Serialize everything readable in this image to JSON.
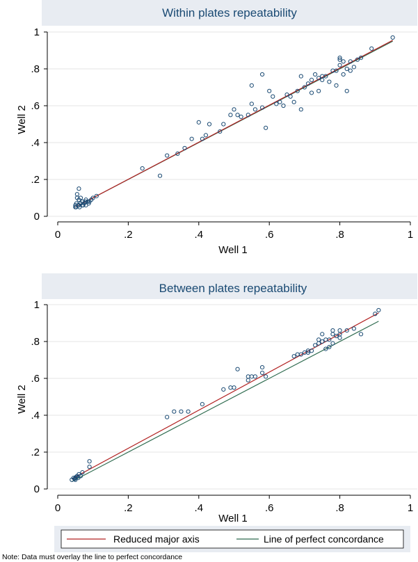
{
  "chart_data": [
    {
      "type": "scatter",
      "title": "Within plates repeatability",
      "xlabel": "Well 1",
      "ylabel": "Well 2",
      "xlim": [
        0,
        1
      ],
      "ylim": [
        0,
        1
      ],
      "x_ticks": [
        0,
        0.2,
        0.4,
        0.6,
        0.8,
        1
      ],
      "y_ticks": [
        0,
        0.2,
        0.4,
        0.6,
        0.8,
        1
      ],
      "x_tick_labels": [
        "0",
        ".2",
        ".4",
        ".6",
        ".8",
        "1"
      ],
      "y_tick_labels": [
        "0",
        ".2",
        ".4",
        ".6",
        ".8",
        "1"
      ],
      "grid": true,
      "points": [
        [
          0.05,
          0.05
        ],
        [
          0.05,
          0.06
        ],
        [
          0.052,
          0.05
        ],
        [
          0.053,
          0.07
        ],
        [
          0.055,
          0.1
        ],
        [
          0.055,
          0.12
        ],
        [
          0.058,
          0.06
        ],
        [
          0.06,
          0.15
        ],
        [
          0.06,
          0.09
        ],
        [
          0.06,
          0.06
        ],
        [
          0.062,
          0.05
        ],
        [
          0.065,
          0.07
        ],
        [
          0.065,
          0.1
        ],
        [
          0.07,
          0.06
        ],
        [
          0.07,
          0.08
        ],
        [
          0.072,
          0.06
        ],
        [
          0.075,
          0.07
        ],
        [
          0.078,
          0.08
        ],
        [
          0.08,
          0.06
        ],
        [
          0.08,
          0.09
        ],
        [
          0.085,
          0.08
        ],
        [
          0.088,
          0.07
        ],
        [
          0.09,
          0.08
        ],
        [
          0.095,
          0.09
        ],
        [
          0.1,
          0.1
        ],
        [
          0.11,
          0.11
        ],
        [
          0.24,
          0.26
        ],
        [
          0.29,
          0.22
        ],
        [
          0.31,
          0.33
        ],
        [
          0.34,
          0.34
        ],
        [
          0.36,
          0.37
        ],
        [
          0.38,
          0.42
        ],
        [
          0.4,
          0.51
        ],
        [
          0.41,
          0.42
        ],
        [
          0.42,
          0.44
        ],
        [
          0.43,
          0.5
        ],
        [
          0.46,
          0.46
        ],
        [
          0.47,
          0.5
        ],
        [
          0.49,
          0.55
        ],
        [
          0.5,
          0.58
        ],
        [
          0.51,
          0.55
        ],
        [
          0.52,
          0.54
        ],
        [
          0.54,
          0.55
        ],
        [
          0.55,
          0.71
        ],
        [
          0.55,
          0.61
        ],
        [
          0.56,
          0.58
        ],
        [
          0.58,
          0.77
        ],
        [
          0.58,
          0.59
        ],
        [
          0.59,
          0.48
        ],
        [
          0.6,
          0.68
        ],
        [
          0.61,
          0.65
        ],
        [
          0.62,
          0.61
        ],
        [
          0.63,
          0.62
        ],
        [
          0.64,
          0.6
        ],
        [
          0.65,
          0.66
        ],
        [
          0.66,
          0.65
        ],
        [
          0.67,
          0.62
        ],
        [
          0.68,
          0.68
        ],
        [
          0.69,
          0.76
        ],
        [
          0.69,
          0.58
        ],
        [
          0.7,
          0.7
        ],
        [
          0.71,
          0.72
        ],
        [
          0.72,
          0.74
        ],
        [
          0.72,
          0.67
        ],
        [
          0.73,
          0.77
        ],
        [
          0.74,
          0.75
        ],
        [
          0.74,
          0.68
        ],
        [
          0.75,
          0.74
        ],
        [
          0.75,
          0.76
        ],
        [
          0.76,
          0.76
        ],
        [
          0.77,
          0.73
        ],
        [
          0.78,
          0.79
        ],
        [
          0.79,
          0.79
        ],
        [
          0.79,
          0.71
        ],
        [
          0.8,
          0.82
        ],
        [
          0.8,
          0.86
        ],
        [
          0.8,
          0.85
        ],
        [
          0.81,
          0.77
        ],
        [
          0.81,
          0.84
        ],
        [
          0.82,
          0.8
        ],
        [
          0.82,
          0.68
        ],
        [
          0.83,
          0.84
        ],
        [
          0.83,
          0.79
        ],
        [
          0.84,
          0.81
        ],
        [
          0.85,
          0.85
        ],
        [
          0.86,
          0.86
        ],
        [
          0.89,
          0.91
        ],
        [
          0.95,
          0.97
        ]
      ],
      "lines": [
        {
          "role": "Reduced major axis",
          "color": "#b22222",
          "x": [
            0.05,
            0.95
          ],
          "y": [
            0.05,
            0.955
          ]
        },
        {
          "role": "Line of perfect concordance",
          "color": "#2e6b4f",
          "x": [
            0.05,
            0.95
          ],
          "y": [
            0.05,
            0.95
          ]
        }
      ]
    },
    {
      "type": "scatter",
      "title": "Between plates repeatability",
      "xlabel": "Well 1",
      "ylabel": "Well 2",
      "xlim": [
        0,
        1
      ],
      "ylim": [
        0,
        1
      ],
      "x_ticks": [
        0,
        0.2,
        0.4,
        0.6,
        0.8,
        1
      ],
      "y_ticks": [
        0,
        0.2,
        0.4,
        0.6,
        0.8,
        1
      ],
      "x_tick_labels": [
        "0",
        ".2",
        ".4",
        ".6",
        ".8",
        "1"
      ],
      "y_tick_labels": [
        "0",
        ".2",
        ".4",
        ".6",
        ".8",
        "1"
      ],
      "grid": true,
      "points": [
        [
          0.04,
          0.05
        ],
        [
          0.045,
          0.06
        ],
        [
          0.048,
          0.055
        ],
        [
          0.05,
          0.06
        ],
        [
          0.05,
          0.05
        ],
        [
          0.052,
          0.065
        ],
        [
          0.055,
          0.07
        ],
        [
          0.058,
          0.06
        ],
        [
          0.06,
          0.08
        ],
        [
          0.065,
          0.07
        ],
        [
          0.07,
          0.09
        ],
        [
          0.09,
          0.15
        ],
        [
          0.09,
          0.12
        ],
        [
          0.31,
          0.39
        ],
        [
          0.33,
          0.42
        ],
        [
          0.35,
          0.42
        ],
        [
          0.37,
          0.42
        ],
        [
          0.41,
          0.46
        ],
        [
          0.47,
          0.54
        ],
        [
          0.49,
          0.55
        ],
        [
          0.5,
          0.55
        ],
        [
          0.51,
          0.65
        ],
        [
          0.54,
          0.59
        ],
        [
          0.54,
          0.61
        ],
        [
          0.55,
          0.61
        ],
        [
          0.56,
          0.61
        ],
        [
          0.58,
          0.63
        ],
        [
          0.58,
          0.66
        ],
        [
          0.59,
          0.61
        ],
        [
          0.67,
          0.72
        ],
        [
          0.68,
          0.73
        ],
        [
          0.69,
          0.73
        ],
        [
          0.7,
          0.74
        ],
        [
          0.71,
          0.74
        ],
        [
          0.71,
          0.75
        ],
        [
          0.72,
          0.75
        ],
        [
          0.73,
          0.78
        ],
        [
          0.74,
          0.81
        ],
        [
          0.74,
          0.79
        ],
        [
          0.75,
          0.8
        ],
        [
          0.75,
          0.84
        ],
        [
          0.76,
          0.81
        ],
        [
          0.76,
          0.76
        ],
        [
          0.77,
          0.77
        ],
        [
          0.77,
          0.81
        ],
        [
          0.78,
          0.84
        ],
        [
          0.78,
          0.79
        ],
        [
          0.78,
          0.86
        ],
        [
          0.79,
          0.83
        ],
        [
          0.8,
          0.84
        ],
        [
          0.8,
          0.86
        ],
        [
          0.8,
          0.82
        ],
        [
          0.82,
          0.86
        ],
        [
          0.84,
          0.87
        ],
        [
          0.86,
          0.84
        ],
        [
          0.9,
          0.95
        ],
        [
          0.91,
          0.97
        ]
      ],
      "lines": [
        {
          "role": "Reduced major axis",
          "color": "#b22222",
          "x": [
            0.04,
            0.91
          ],
          "y": [
            0.055,
            0.955
          ]
        },
        {
          "role": "Line of perfect concordance",
          "color": "#2e6b4f",
          "x": [
            0.04,
            0.91
          ],
          "y": [
            0.04,
            0.91
          ]
        }
      ]
    }
  ],
  "legend": {
    "items": [
      {
        "label": "Reduced major axis",
        "color": "#b22222"
      },
      {
        "label": "Line of perfect concordance",
        "color": "#2e6b4f"
      }
    ]
  },
  "note": "Note: Data must overlay the line to perfect concordance",
  "colors": {
    "title": "#1a4a73",
    "marker": "#1a4a73",
    "grid": "#e6e6e6",
    "title_band": "#e8ecf2",
    "legend_bg": "#e8ecf2"
  }
}
